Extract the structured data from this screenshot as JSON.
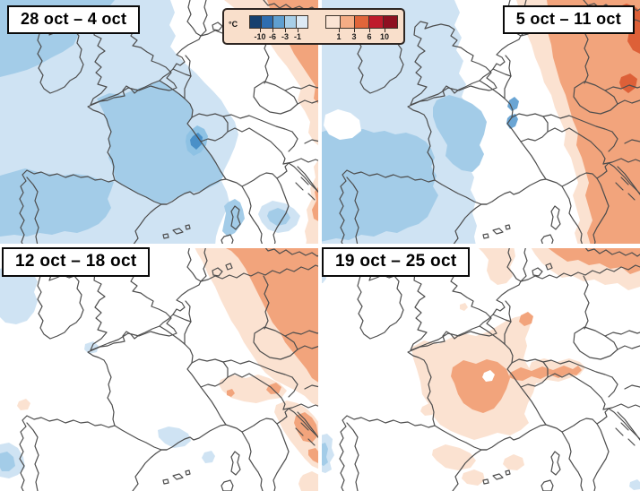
{
  "panels": [
    {
      "label": "28 oct – 4 oct",
      "label_position": "top-left"
    },
    {
      "label": "5 oct – 11 oct",
      "label_position": "top-right"
    },
    {
      "label": "12 oct – 18 oct",
      "label_position": "top-left"
    },
    {
      "label": "19 oct – 25 oct",
      "label_position": "top-left"
    }
  ],
  "legend": {
    "unit": "°C",
    "background": "#f9dfcb",
    "negative": {
      "colors": [
        "#16406f",
        "#2e6db0",
        "#5f9fd0",
        "#a8cfe8",
        "#ddeaf5"
      ],
      "tick_labels": [
        "-10",
        "-6",
        "-3",
        "-1"
      ]
    },
    "positive": {
      "colors": [
        "#fbe4d4",
        "#f5ad85",
        "#e0653a",
        "#bf1b2c",
        "#8e1021"
      ],
      "tick_labels": [
        "1",
        "3",
        "6",
        "10"
      ]
    }
  },
  "map_palette": {
    "light_blue": "#cfe3f3",
    "medium_blue": "#a3cce8",
    "strong_blue": "#8ec2e4",
    "core_blue": "#4a90c8",
    "spot_blue": "#6aa5d4",
    "pale_orange": "#fbe2d1",
    "medium_orange": "#f2a47c",
    "strong_orange": "#dd6038",
    "white": "#ffffff",
    "border_gray": "#4d4d4d"
  }
}
